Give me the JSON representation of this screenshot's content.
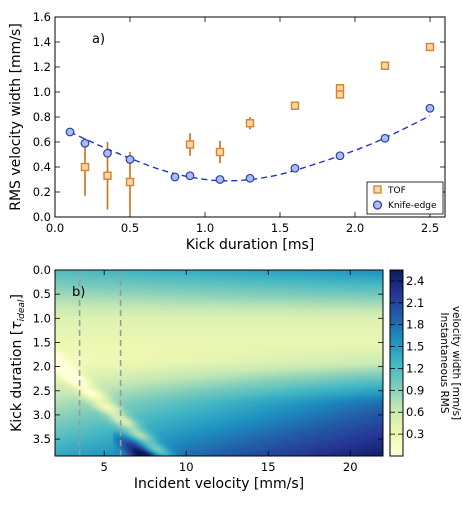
{
  "chart_data": [
    {
      "type": "scatter",
      "panel_label": "a)",
      "xlabel": "Kick duration [ms]",
      "ylabel": "RMS velocity width [mm/s]",
      "xlim": [
        0.0,
        2.6
      ],
      "ylim": [
        0.0,
        1.6
      ],
      "xticks": [
        "0.0",
        "0.5",
        "1.0",
        "1.5",
        "2.0",
        "2.5"
      ],
      "yticks": [
        "0.0",
        "0.2",
        "0.4",
        "0.6",
        "0.8",
        "1.0",
        "1.2",
        "1.4",
        "1.6"
      ],
      "legend_position": "lower-right",
      "series": [
        {
          "name": "TOF",
          "marker": "square",
          "color": "#d9822b",
          "x": [
            0.2,
            0.35,
            0.5,
            0.9,
            1.1,
            1.3,
            1.6,
            1.9,
            1.9,
            2.2,
            2.5
          ],
          "y": [
            0.4,
            0.33,
            0.28,
            0.58,
            0.52,
            0.75,
            0.89,
            1.03,
            0.98,
            1.21,
            1.36
          ],
          "err": [
            0.23,
            0.27,
            0.24,
            0.09,
            0.09,
            0.05,
            0.03,
            0.03,
            0.03,
            0.02,
            0.02
          ]
        },
        {
          "name": "Knife-edge",
          "marker": "circle",
          "color": "#3f5fc4",
          "x": [
            0.1,
            0.2,
            0.35,
            0.5,
            0.8,
            0.9,
            1.1,
            1.3,
            1.6,
            1.9,
            2.2,
            2.5
          ],
          "y": [
            0.68,
            0.59,
            0.51,
            0.46,
            0.32,
            0.33,
            0.3,
            0.31,
            0.39,
            0.49,
            0.63,
            0.87
          ]
        }
      ],
      "fit_curve": {
        "style": "dashed",
        "color": "#2233cc",
        "x": [
          0.1,
          0.3,
          0.5,
          0.7,
          0.9,
          1.1,
          1.3,
          1.5,
          1.7,
          1.9,
          2.1,
          2.3,
          2.5
        ],
        "y": [
          0.68,
          0.57,
          0.47,
          0.38,
          0.32,
          0.29,
          0.3,
          0.34,
          0.41,
          0.49,
          0.58,
          0.69,
          0.81
        ]
      }
    },
    {
      "type": "heatmap",
      "panel_label": "b)",
      "xlabel": "Incident velocity [mm/s]",
      "ylabel": "Kick duration [τ_ideal]",
      "ylabel_main": "Kick duration [",
      "ylabel_tau": "τ",
      "ylabel_sub": "ideal",
      "ylabel_close": "]",
      "xlim": [
        2.0,
        22.0
      ],
      "ylim": [
        0.0,
        3.85
      ],
      "y_inverted": true,
      "xticks": [
        "5",
        "10",
        "15",
        "20"
      ],
      "yticks": [
        "0.0",
        "0.5",
        "1.0",
        "1.5",
        "2.0",
        "2.5",
        "3.0",
        "3.5"
      ],
      "dashed_lines_x": [
        3.5,
        6.0
      ],
      "colormap": "YlGnBu",
      "colorbar": {
        "label": "Instantaneous RMS velocity width [mm/s]",
        "label_line1": "Instantaneous RMS",
        "label_line2": "velocity width [mm/s]",
        "range": [
          0.0,
          2.55
        ],
        "ticks": [
          "0.3",
          "0.6",
          "0.9",
          "1.2",
          "1.5",
          "1.8",
          "2.1",
          "2.4"
        ]
      }
    }
  ]
}
